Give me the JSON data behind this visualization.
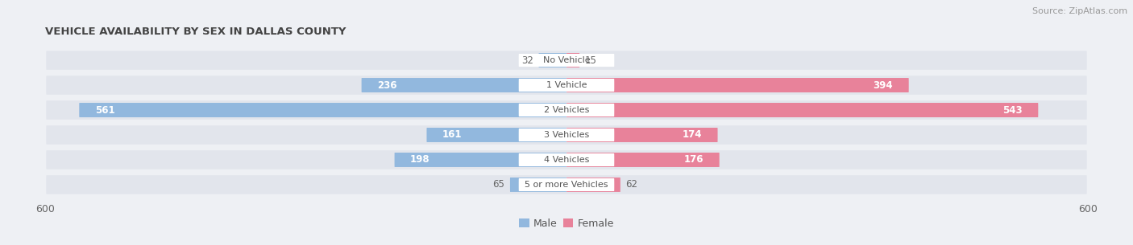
{
  "title": "VEHICLE AVAILABILITY BY SEX IN DALLAS COUNTY",
  "source": "Source: ZipAtlas.com",
  "categories": [
    "No Vehicle",
    "1 Vehicle",
    "2 Vehicles",
    "3 Vehicles",
    "4 Vehicles",
    "5 or more Vehicles"
  ],
  "male_values": [
    32,
    236,
    561,
    161,
    198,
    65
  ],
  "female_values": [
    15,
    394,
    543,
    174,
    176,
    62
  ],
  "male_color": "#92b8de",
  "female_color": "#e8829a",
  "label_color_inside": "#ffffff",
  "label_color_outside": "#666666",
  "background_color": "#eef0f4",
  "row_bg_color": "#e2e5ec",
  "axis_max": 600,
  "title_fontsize": 9.5,
  "source_fontsize": 8,
  "bar_label_fontsize": 8.5,
  "category_fontsize": 8,
  "legend_fontsize": 9,
  "axis_label_fontsize": 9,
  "inside_threshold": 100
}
